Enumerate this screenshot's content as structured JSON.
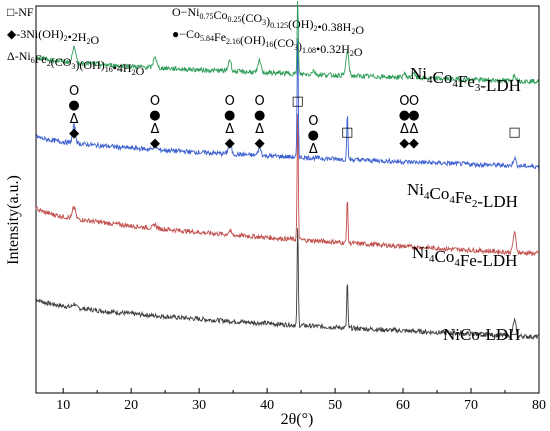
{
  "chart_data": {
    "type": "line",
    "xlabel": "2θ(°)",
    "ylabel": "Intensity(a.u.)",
    "xlim": [
      6,
      80
    ],
    "xticks": [
      "10",
      "20",
      "30",
      "40",
      "50",
      "60",
      "70",
      "80"
    ],
    "grid": false,
    "series": [
      {
        "name": "NiCo-LDH",
        "name_parts": [
          [
            "Ni",
            ""
          ],
          [
            "Co-LDH",
            ""
          ]
        ],
        "color": "#3d3d3d",
        "baseline_start": 0.245,
        "baseline_end": 0.145,
        "peaks": [
          [
            11.6,
            0.01
          ],
          [
            44.5,
            0.26
          ],
          [
            51.8,
            0.12
          ],
          [
            76.4,
            0.04
          ]
        ]
      },
      {
        "name": "Ni4Co4Fe-LDH",
        "color": "#c0504d",
        "baseline_start": 0.48,
        "baseline_end": 0.36,
        "peaks": [
          [
            11.6,
            0.03
          ],
          [
            23.5,
            0.01
          ],
          [
            34.5,
            0.01
          ],
          [
            44.5,
            0.33
          ],
          [
            51.8,
            0.12
          ],
          [
            76.4,
            0.05
          ]
        ]
      },
      {
        "name": "Ni4Co4Fe2-LDH",
        "color": "#3b5fcf",
        "baseline_start": 0.665,
        "baseline_end": 0.585,
        "peaks": [
          [
            11.6,
            0.045
          ],
          [
            23.5,
            0.015
          ],
          [
            34.5,
            0.03
          ],
          [
            38.9,
            0.02
          ],
          [
            44.5,
            0.31
          ],
          [
            51.8,
            0.12
          ],
          [
            76.4,
            0.02
          ]
        ]
      },
      {
        "name": "Ni4Co4Fe3-LDH",
        "color": "#2f9e5a",
        "baseline_start": 0.87,
        "baseline_end": 0.805,
        "peaks": [
          [
            11.6,
            0.045
          ],
          [
            23.5,
            0.03
          ],
          [
            34.5,
            0.03
          ],
          [
            38.9,
            0.03
          ],
          [
            44.5,
            0.19
          ],
          [
            46.8,
            0.01
          ],
          [
            51.8,
            0.06
          ],
          [
            60.2,
            0.01
          ],
          [
            61.5,
            0.015
          ],
          [
            76.4,
            0.015
          ]
        ]
      }
    ],
    "series_labels": [
      {
        "base": "Ni",
        "s1": "4",
        "mid": "Co",
        "s2": "4",
        "tail": "Fe",
        "s3": "3",
        "end": "-LDH"
      },
      {
        "base": "Ni",
        "s1": "4",
        "mid": "Co",
        "s2": "4",
        "tail": "Fe",
        "s3": "2",
        "end": "-LDH"
      },
      {
        "base": "Ni",
        "s1": "4",
        "mid": "Co",
        "s2": "4",
        "tail": "Fe",
        "s3": "",
        "end": "-LDH"
      },
      {
        "base": "NiCo-LDH",
        "s1": "",
        "mid": "",
        "s2": "",
        "tail": "",
        "s3": "",
        "end": ""
      }
    ],
    "legend": [
      {
        "symbol": "□",
        "text": "-NF"
      },
      {
        "symbol": "O",
        "text": "−Ni0.75Co0.25(CO3)0.125(OH)2•0.38H2O"
      },
      {
        "symbol": "◆",
        "text": "-3Ni(OH)2•2H2O"
      },
      {
        "symbol": "●",
        "text": "−Co5.84Fe2.16(OH)16(CO3)1.08•0.32H2O"
      },
      {
        "symbol": "Δ",
        "text": "-Ni6Fe2(CO3)(OH)16•4H2O"
      }
    ],
    "peak_markers": [
      {
        "x": 11.6,
        "symbols": [
          "O",
          "●",
          "Δ",
          "◆"
        ]
      },
      {
        "x": 23.5,
        "symbols": [
          "O",
          "●",
          "Δ",
          "◆"
        ]
      },
      {
        "x": 34.5,
        "symbols": [
          "O",
          "●",
          "Δ",
          "◆"
        ]
      },
      {
        "x": 38.9,
        "symbols": [
          "O",
          "●",
          "Δ",
          "◆"
        ]
      },
      {
        "x": 44.5,
        "symbols": [
          "□"
        ]
      },
      {
        "x": 46.8,
        "symbols": [
          "O",
          "●",
          "Δ"
        ]
      },
      {
        "x": 51.8,
        "symbols": [
          "□"
        ]
      },
      {
        "x": 60.2,
        "symbols": [
          "O",
          "●",
          "Δ",
          "◆"
        ]
      },
      {
        "x": 61.6,
        "symbols": [
          "O",
          "●",
          "Δ",
          "◆"
        ]
      },
      {
        "x": 76.4,
        "symbols": [
          "□"
        ]
      }
    ]
  }
}
